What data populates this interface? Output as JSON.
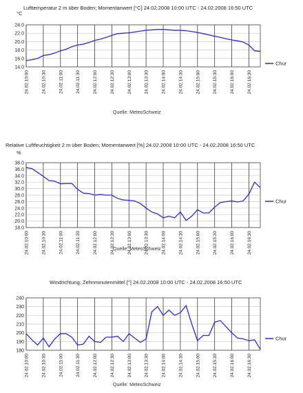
{
  "chart_data": [
    {
      "type": "line",
      "title": "Lufttemperatur 2 m über Boden; Momentanwert [°C]  24.02.2008 10:00 UTC - 24.02.2008 16:50 UTC",
      "ylabel": "°C",
      "ylim": [
        14.0,
        24.0
      ],
      "yticks": [
        "14.0",
        "16.0",
        "18.0",
        "20.0",
        "22.0",
        "24.0"
      ],
      "xlim": [
        "10:00",
        "16:50"
      ],
      "categories": [
        "24.02.10:00",
        "24.02.10:30",
        "24.02.11:00",
        "24.02.11:30",
        "24.02.12:00",
        "24.02.12:30",
        "24.02.13:00",
        "24.02.13:30",
        "24.02.14:00",
        "24.02.14:30",
        "24.02.15:00",
        "24.02.15:30",
        "24.02.16:00",
        "24.02.16:30"
      ],
      "grid": true,
      "legend": "right",
      "source": "Quelle: MeteoSchweiz",
      "series": [
        {
          "name": "Chur",
          "color": "#2b2bd0",
          "x": [
            "10:00",
            "10:10",
            "10:20",
            "10:30",
            "10:40",
            "10:50",
            "11:00",
            "11:10",
            "11:20",
            "11:30",
            "11:40",
            "11:50",
            "12:00",
            "12:10",
            "12:20",
            "12:30",
            "12:40",
            "12:50",
            "13:00",
            "13:10",
            "13:20",
            "13:30",
            "13:40",
            "13:50",
            "14:00",
            "14:10",
            "14:20",
            "14:30",
            "14:40",
            "14:50",
            "15:00",
            "15:10",
            "15:20",
            "15:30",
            "15:40",
            "15:50",
            "16:00",
            "16:10",
            "16:20",
            "16:30",
            "16:40",
            "16:50"
          ],
          "values": [
            15.5,
            15.7,
            16.0,
            16.7,
            16.9,
            17.3,
            17.8,
            18.2,
            18.8,
            19.2,
            19.4,
            19.8,
            20.3,
            20.6,
            21.0,
            21.5,
            21.9,
            22.0,
            22.1,
            22.3,
            22.5,
            22.7,
            22.8,
            22.9,
            22.9,
            22.8,
            22.7,
            22.7,
            22.6,
            22.4,
            22.2,
            21.9,
            21.6,
            21.3,
            21.0,
            20.7,
            20.4,
            20.2,
            19.9,
            19.2,
            17.8,
            17.7
          ]
        }
      ]
    },
    {
      "type": "line",
      "title": "Relative Luftfeuchtigkeit 2 m über Boden; Momentanwert [%]  24.02.2008 10:00 UTC - 24.02.2008 16:50 UTC",
      "ylabel": "%",
      "ylim": [
        18.0,
        38.0
      ],
      "yticks": [
        "18.0",
        "20.0",
        "22.0",
        "24.0",
        "26.0",
        "28.0",
        "30.0",
        "32.0",
        "34.0",
        "36.0",
        "38.0"
      ],
      "xlim": [
        "10:00",
        "16:50"
      ],
      "categories": [
        "24.02.10:00",
        "24.02.10:30",
        "24.02.11:00",
        "24.02.11:30",
        "24.02.12:00",
        "24.02.12:30",
        "24.02.13:00",
        "24.02.13:30",
        "24.02.14:00",
        "24.02.14:30",
        "24.02.15:00",
        "24.02.15:30",
        "24.02.16:00",
        "24.02.16:30"
      ],
      "grid": true,
      "legend": "right",
      "source": "Quelle: MeteoSchweiz",
      "series": [
        {
          "name": "Chur",
          "color": "#2b2bd0",
          "x": [
            "10:00",
            "10:10",
            "10:20",
            "10:30",
            "10:40",
            "10:50",
            "11:00",
            "11:10",
            "11:20",
            "11:30",
            "11:40",
            "11:50",
            "12:00",
            "12:10",
            "12:20",
            "12:30",
            "12:40",
            "12:50",
            "13:00",
            "13:10",
            "13:20",
            "13:30",
            "13:40",
            "13:50",
            "14:00",
            "14:10",
            "14:20",
            "14:30",
            "14:40",
            "14:50",
            "15:00",
            "15:10",
            "15:20",
            "15:30",
            "15:40",
            "15:50",
            "16:00",
            "16:10",
            "16:20",
            "16:30",
            "16:40",
            "16:50"
          ],
          "values": [
            36.5,
            36.2,
            35.0,
            33.8,
            32.5,
            32.3,
            31.5,
            31.6,
            31.6,
            29.8,
            28.6,
            28.5,
            28.0,
            28.2,
            28.0,
            28.0,
            27.0,
            26.5,
            26.4,
            26.2,
            25.4,
            24.0,
            22.8,
            22.2,
            21.0,
            21.5,
            21.0,
            22.8,
            20.2,
            21.5,
            23.5,
            22.5,
            22.5,
            24.3,
            25.7,
            26.0,
            26.2,
            25.9,
            26.2,
            28.3,
            32.0,
            30.3
          ]
        }
      ]
    },
    {
      "type": "line",
      "title": "Windrichtung; Zehnminutenmittel [°]  24.02.2008 10:00 UTC - 24.02.2008 16:50 UTC",
      "ylabel": "",
      "ylim": [
        180,
        240
      ],
      "yticks": [
        "180",
        "190",
        "200",
        "210",
        "220",
        "230",
        "240"
      ],
      "xlim": [
        "10:00",
        "16:50"
      ],
      "categories": [
        "24.02.10:00",
        "24.02.10:30",
        "24.02.11:00",
        "24.02.11:30",
        "24.02.12:00",
        "24.02.12:30",
        "24.02.13:00",
        "24.02.13:30",
        "24.02.14:00",
        "24.02.14:30",
        "24.02.15:00",
        "24.02.15:30",
        "24.02.16:00",
        "24.02.16:30"
      ],
      "grid": true,
      "legend": "right",
      "source": "Quelle: MeteoSchweiz",
      "series": [
        {
          "name": "Chur",
          "color": "#2b2bd0",
          "x": [
            "10:00",
            "10:10",
            "10:20",
            "10:30",
            "10:40",
            "10:50",
            "11:00",
            "11:10",
            "11:20",
            "11:30",
            "11:40",
            "11:50",
            "12:00",
            "12:10",
            "12:20",
            "12:30",
            "12:40",
            "12:50",
            "13:00",
            "13:10",
            "13:20",
            "13:30",
            "13:40",
            "13:50",
            "14:00",
            "14:10",
            "14:20",
            "14:30",
            "14:40",
            "14:50",
            "15:00",
            "15:10",
            "15:20",
            "15:30",
            "15:40",
            "15:50",
            "16:00",
            "16:10",
            "16:20",
            "16:30",
            "16:40",
            "16:50"
          ],
          "values": [
            199,
            192,
            186,
            194,
            184,
            193,
            199,
            199,
            195,
            186,
            187,
            196,
            190,
            189,
            195,
            195,
            196,
            190,
            199,
            194,
            189,
            193,
            224,
            230,
            220,
            226,
            220,
            223,
            231,
            210,
            191,
            197,
            197,
            212,
            214,
            207,
            200,
            194,
            193,
            191,
            192,
            181
          ]
        }
      ]
    }
  ]
}
